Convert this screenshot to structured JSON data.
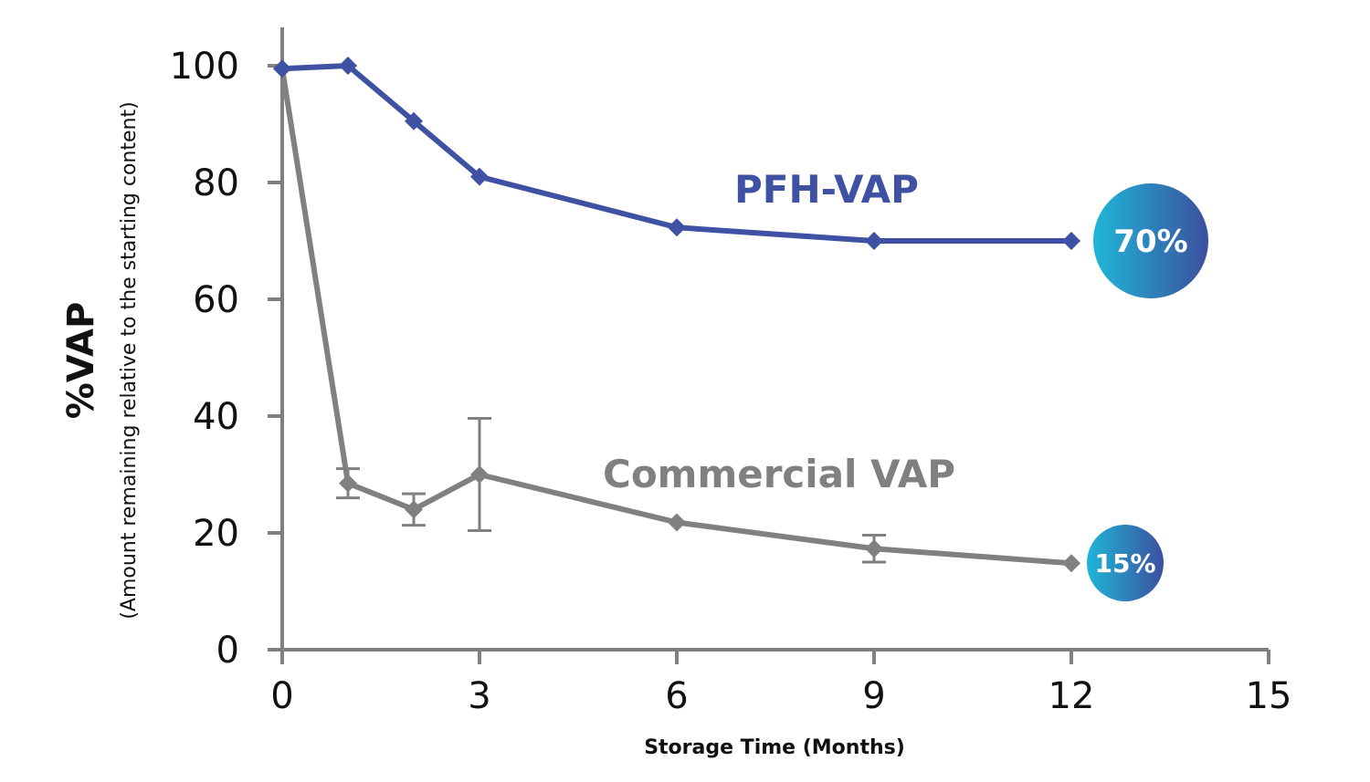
{
  "chart_data": {
    "type": "line",
    "xlabel": "Storage Time (Months)",
    "ylabel": "%VAP",
    "ylabel_sub": "(Amount remaining relative to the starting content)",
    "xlim": [
      0,
      15
    ],
    "ylim": [
      0,
      100
    ],
    "x_ticks": [
      0,
      3,
      6,
      9,
      12,
      15
    ],
    "y_ticks": [
      0,
      20,
      40,
      60,
      80,
      100
    ],
    "grid": false,
    "legend": "inline labels",
    "series": [
      {
        "name": "PFH-VAP",
        "color": "#3f51a3",
        "x": [
          0,
          1,
          2,
          3,
          6,
          9,
          12
        ],
        "y": [
          99.5,
          100,
          90.5,
          81,
          72.3,
          70,
          70
        ],
        "end_label": "70%"
      },
      {
        "name": "Commercial VAP",
        "color": "#808080",
        "x": [
          0,
          1,
          2,
          3,
          6,
          9,
          12
        ],
        "y": [
          99.5,
          28.5,
          24,
          30,
          21.8,
          17.3,
          14.8
        ],
        "error": [
          0,
          2.5,
          2.7,
          9.6,
          0,
          2.3,
          0
        ],
        "end_label": "15%"
      }
    ]
  },
  "colors": {
    "axis": "#808080",
    "badge_start": "#1fb6d9",
    "badge_end": "#3c4f9e"
  }
}
